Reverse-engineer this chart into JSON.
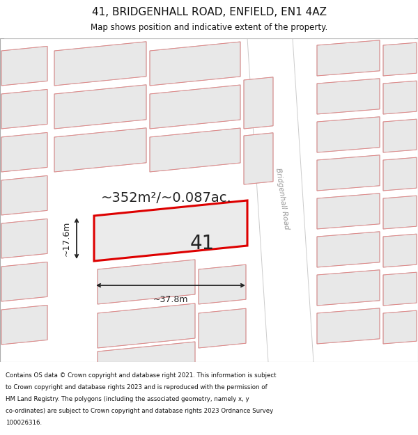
{
  "title_line1": "41, BRIDGENHALL ROAD, ENFIELD, EN1 4AZ",
  "title_line2": "Map shows position and indicative extent of the property.",
  "footer_lines": [
    "Contains OS data © Crown copyright and database right 2021. This information is subject",
    "to Crown copyright and database rights 2023 and is reproduced with the permission of",
    "HM Land Registry. The polygons (including the associated geometry, namely x, y",
    "co-ordinates) are subject to Crown copyright and database rights 2023 Ordnance Survey",
    "100026316."
  ],
  "map_bg": "#ffffff",
  "building_fill": "#e8e8e8",
  "building_edge": "#aaaaaa",
  "highlight_fill": "#f0f0f0",
  "highlight_stroke": "#dd0000",
  "road_fill": "#ffffff",
  "road_edge_color": "#cccccc",
  "red_outline_color": "#f08080",
  "road_label": "Bridgenhall Road",
  "road_label_color": "#999999",
  "area_text": "~352m²/~0.087ac.",
  "dim_width": "~37.8m",
  "dim_height": "~17.6m",
  "plot_number": "41",
  "bg_color": "#ffffff",
  "arrow_color": "#222222",
  "text_color": "#222222"
}
